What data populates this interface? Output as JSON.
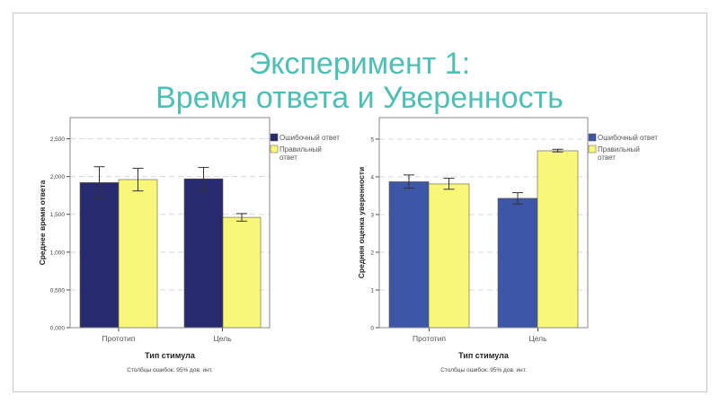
{
  "slide": {
    "title_line1": "Эксперимент 1:",
    "title_line2": "Время ответа и Уверенность"
  },
  "colors": {
    "title": "#4dbfb5",
    "error_bar": "#333333"
  },
  "chart_data": [
    {
      "type": "bar",
      "categories": [
        "Прототип",
        "Цель"
      ],
      "xlabel": "Тип стимула",
      "ylabel": "Среднее время ответа",
      "ylim": [
        0,
        2.78
      ],
      "yticks": [
        0,
        0.5,
        1,
        1.5,
        2,
        2.5
      ],
      "ytick_labels": [
        "0,000",
        "0,500",
        "1,000",
        "1,500",
        "2,000",
        "2,500"
      ],
      "grid": "horizontal dashed",
      "legend_position": "right",
      "footnote": "Столбцы ошибок: 95% дов. инт.",
      "series": [
        {
          "name": "Ошибочный ответ",
          "color": "#272a6e",
          "values": [
            1.92,
            1.97
          ],
          "ci_low": [
            1.71,
            1.82
          ],
          "ci_high": [
            2.13,
            2.12
          ]
        },
        {
          "name": "Правильный ответ",
          "color": "#f8f77a",
          "values": [
            1.96,
            1.46
          ],
          "ci_low": [
            1.81,
            1.41
          ],
          "ci_high": [
            2.11,
            1.51
          ]
        }
      ]
    },
    {
      "type": "bar",
      "categories": [
        "Прототип",
        "Цель"
      ],
      "xlabel": "Тип стимула",
      "ylabel": "Средняя оценка уверенности",
      "ylim": [
        0,
        5.57
      ],
      "yticks": [
        0,
        1,
        2,
        3,
        4,
        5
      ],
      "ytick_labels": [
        "0",
        "1",
        "2",
        "3",
        "4",
        "5"
      ],
      "grid": "horizontal dashed",
      "legend_position": "right",
      "footnote": "Столбцы ошибок: 95% дов. инт.",
      "series": [
        {
          "name": "Ошибочный ответ",
          "color": "#3d56a8",
          "values": [
            3.87,
            3.43
          ],
          "ci_low": [
            3.7,
            3.28
          ],
          "ci_high": [
            4.05,
            3.58
          ]
        },
        {
          "name": "Правильный ответ",
          "color": "#f8f77a",
          "values": [
            3.81,
            4.69
          ],
          "ci_low": [
            3.67,
            4.66
          ],
          "ci_high": [
            3.96,
            4.73
          ]
        }
      ]
    }
  ]
}
